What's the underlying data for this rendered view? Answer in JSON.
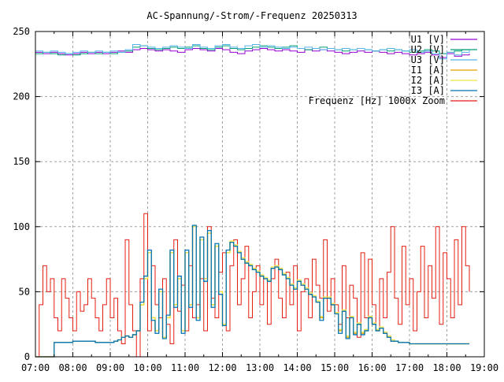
{
  "chart_data": {
    "type": "line",
    "title": "AC-Spannung/-Strom/-Frequenz 20250313",
    "xlabel": "",
    "ylabel": "",
    "xlim": [
      7,
      19
    ],
    "ylim": [
      0,
      250
    ],
    "grid": true,
    "legend_position": "top-right",
    "x_tick_labels": [
      "07:00",
      "08:00",
      "09:00",
      "10:00",
      "11:00",
      "12:00",
      "13:00",
      "14:00",
      "15:00",
      "16:00",
      "17:00",
      "18:00",
      "19:00"
    ],
    "y_tick_labels": [
      "0",
      "50",
      "100",
      "150",
      "200",
      "250"
    ],
    "y_ticks": [
      0,
      50,
      100,
      150,
      200,
      250
    ],
    "x_start_hours": 7.0,
    "series": [
      {
        "name": "U1 [V]",
        "color": "#9400d3",
        "step_hours": 0.2,
        "values": [
          234,
          233,
          234,
          233,
          232,
          233,
          234,
          233,
          234,
          233,
          234,
          235,
          234,
          236,
          237,
          236,
          235,
          236,
          235,
          234,
          236,
          237,
          236,
          235,
          237,
          236,
          234,
          233,
          235,
          236,
          237,
          236,
          235,
          236,
          235,
          234,
          236,
          235,
          236,
          235,
          234,
          233,
          234,
          235,
          234,
          235,
          234,
          233,
          234,
          233,
          232,
          233,
          234,
          232,
          230,
          233,
          231,
          232,
          233
        ]
      },
      {
        "name": "U2 [V]",
        "color": "#009e73",
        "step_hours": 0.2,
        "values": [
          233,
          234,
          233,
          232,
          233,
          232,
          233,
          234,
          233,
          234,
          233,
          234,
          235,
          238,
          239,
          237,
          236,
          237,
          238,
          237,
          238,
          239,
          237,
          236,
          238,
          239,
          237,
          236,
          237,
          238,
          239,
          238,
          237,
          238,
          239,
          237,
          236,
          237,
          238,
          237,
          236,
          235,
          236,
          237,
          236,
          235,
          236,
          235,
          236,
          235,
          234,
          235,
          236,
          235,
          233,
          234,
          235,
          236,
          235
        ]
      },
      {
        "name": "U3 [V]",
        "color": "#56b4e9",
        "step_hours": 0.2,
        "values": [
          235,
          234,
          235,
          234,
          233,
          234,
          235,
          234,
          235,
          234,
          235,
          234,
          236,
          240,
          239,
          238,
          237,
          238,
          239,
          238,
          237,
          240,
          238,
          237,
          239,
          240,
          238,
          237,
          239,
          240,
          238,
          239,
          238,
          237,
          238,
          237,
          238,
          237,
          236,
          237,
          236,
          237,
          236,
          237,
          236,
          235,
          236,
          237,
          236,
          235,
          236,
          234,
          235,
          233,
          229,
          234,
          232,
          234,
          236
        ]
      },
      {
        "name": "I1 [A]",
        "color": "#e69f00",
        "step_hours": 0.1,
        "values": [
          0,
          0,
          0,
          0,
          0,
          11,
          11,
          11,
          11,
          11,
          12,
          12,
          12,
          12,
          12,
          12,
          11,
          11,
          11,
          11,
          11,
          12,
          13,
          15,
          16,
          15,
          17,
          20,
          40,
          60,
          80,
          30,
          20,
          50,
          15,
          30,
          80,
          40,
          60,
          20,
          80,
          40,
          100,
          30,
          90,
          60,
          95,
          40,
          85,
          50,
          25,
          80,
          88,
          85,
          80,
          75,
          72,
          70,
          67,
          65,
          62,
          60,
          58,
          68,
          69,
          67,
          63,
          60,
          55,
          52,
          58,
          55,
          52,
          48,
          46,
          42,
          30,
          45,
          45,
          40,
          33,
          20,
          35,
          15,
          30,
          18,
          25,
          18,
          20,
          30,
          25,
          20,
          22,
          18,
          15,
          12,
          12,
          11,
          11,
          11,
          10,
          10,
          10,
          10,
          10,
          10,
          10,
          10,
          10,
          10,
          10,
          10,
          10,
          10,
          10,
          10,
          10
        ]
      },
      {
        "name": "I2 [A]",
        "color": "#f0e442",
        "step_hours": 0.1,
        "values": [
          0,
          0,
          0,
          0,
          0,
          11,
          11,
          11,
          11,
          11,
          12,
          12,
          12,
          12,
          12,
          12,
          11,
          11,
          11,
          11,
          11,
          12,
          13,
          15,
          16,
          15,
          17,
          20,
          40,
          60,
          80,
          30,
          20,
          50,
          15,
          30,
          80,
          40,
          60,
          20,
          80,
          40,
          100,
          30,
          90,
          60,
          95,
          40,
          85,
          50,
          25,
          80,
          89,
          86,
          81,
          76,
          73,
          71,
          68,
          66,
          63,
          61,
          59,
          69,
          70,
          68,
          64,
          61,
          56,
          53,
          59,
          56,
          53,
          49,
          47,
          43,
          31,
          46,
          46,
          41,
          34,
          21,
          36,
          16,
          31,
          19,
          26,
          19,
          21,
          31,
          26,
          21,
          23,
          19,
          16,
          13,
          12,
          11,
          11,
          11,
          10,
          10,
          10,
          10,
          10,
          10,
          10,
          10,
          10,
          10,
          10,
          10,
          10,
          10,
          10,
          10,
          10
        ]
      },
      {
        "name": "I3 [A]",
        "color": "#0072b2",
        "step_hours": 0.1,
        "values": [
          0,
          0,
          0,
          0,
          0,
          11,
          11,
          11,
          11,
          11,
          12,
          12,
          12,
          12,
          12,
          12,
          11,
          11,
          11,
          11,
          11,
          12,
          13,
          15,
          16,
          15,
          17,
          20,
          42,
          62,
          82,
          28,
          18,
          52,
          14,
          32,
          82,
          38,
          62,
          18,
          82,
          38,
          101,
          28,
          92,
          58,
          97,
          38,
          87,
          48,
          24,
          82,
          88,
          85,
          80,
          75,
          72,
          70,
          67,
          65,
          62,
          60,
          58,
          68,
          69,
          67,
          63,
          60,
          55,
          52,
          58,
          55,
          52,
          48,
          46,
          42,
          28,
          45,
          45,
          40,
          33,
          18,
          35,
          14,
          30,
          17,
          25,
          17,
          20,
          30,
          25,
          20,
          22,
          18,
          15,
          12,
          12,
          11,
          11,
          11,
          10,
          10,
          10,
          10,
          10,
          10,
          10,
          10,
          10,
          10,
          10,
          10,
          10,
          10,
          10,
          10,
          10
        ]
      },
      {
        "name": "Frequenz [Hz] 1000x Zoom",
        "color": "#e51e10",
        "step_hours": 0.1,
        "values": [
          0,
          40,
          70,
          50,
          60,
          30,
          20,
          60,
          45,
          30,
          20,
          50,
          35,
          40,
          60,
          45,
          30,
          20,
          40,
          60,
          30,
          45,
          20,
          10,
          90,
          40,
          20,
          0,
          60,
          110,
          20,
          70,
          40,
          30,
          60,
          25,
          10,
          90,
          35,
          55,
          20,
          70,
          30,
          40,
          60,
          20,
          100,
          45,
          30,
          65,
          80,
          20,
          70,
          90,
          40,
          60,
          85,
          30,
          50,
          70,
          40,
          60,
          25,
          60,
          75,
          45,
          30,
          65,
          40,
          70,
          20,
          50,
          60,
          30,
          75,
          55,
          45,
          90,
          35,
          60,
          40,
          25,
          70,
          30,
          55,
          45,
          15,
          80,
          30,
          75,
          40,
          20,
          60,
          30,
          65,
          100,
          45,
          25,
          85,
          40,
          60,
          20,
          50,
          85,
          30,
          70,
          45,
          100,
          25,
          80,
          60,
          30,
          90,
          40,
          100,
          70,
          50
        ]
      }
    ]
  }
}
